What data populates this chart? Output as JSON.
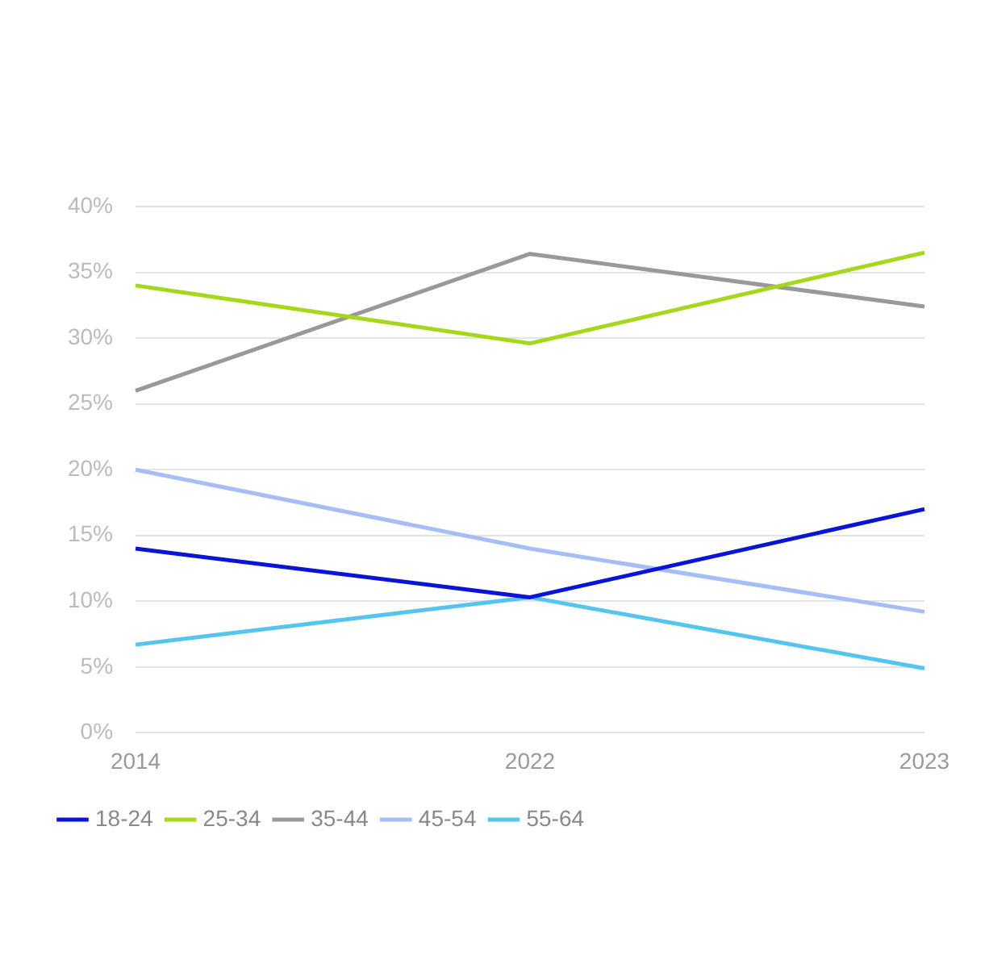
{
  "chart_data": {
    "type": "line",
    "categories": [
      "2014",
      "2022",
      "2023"
    ],
    "series": [
      {
        "name": "18-24",
        "color": "#0a14d4",
        "values": [
          14,
          10.3,
          17
        ]
      },
      {
        "name": "25-34",
        "color": "#a3d81b",
        "values": [
          34,
          29.6,
          36.5
        ]
      },
      {
        "name": "35-44",
        "color": "#999999",
        "values": [
          26,
          36.4,
          32.4
        ]
      },
      {
        "name": "45-54",
        "color": "#a5bdf8",
        "values": [
          20,
          14,
          9.2
        ]
      },
      {
        "name": "55-64",
        "color": "#55c5ef",
        "values": [
          6.7,
          10.3,
          4.9
        ]
      }
    ],
    "ylim": [
      0,
      40
    ],
    "yticks": [
      {
        "value": 0,
        "label": "0%"
      },
      {
        "value": 5,
        "label": "5%"
      },
      {
        "value": 10,
        "label": "10%"
      },
      {
        "value": 15,
        "label": "15%"
      },
      {
        "value": 20,
        "label": "20%"
      },
      {
        "value": 25,
        "label": "25%"
      },
      {
        "value": 30,
        "label": "30%"
      },
      {
        "value": 35,
        "label": "35%"
      },
      {
        "value": 40,
        "label": "40%"
      }
    ],
    "grid": "y",
    "legend": "bottom",
    "marker": "none",
    "line_style": "solid"
  }
}
